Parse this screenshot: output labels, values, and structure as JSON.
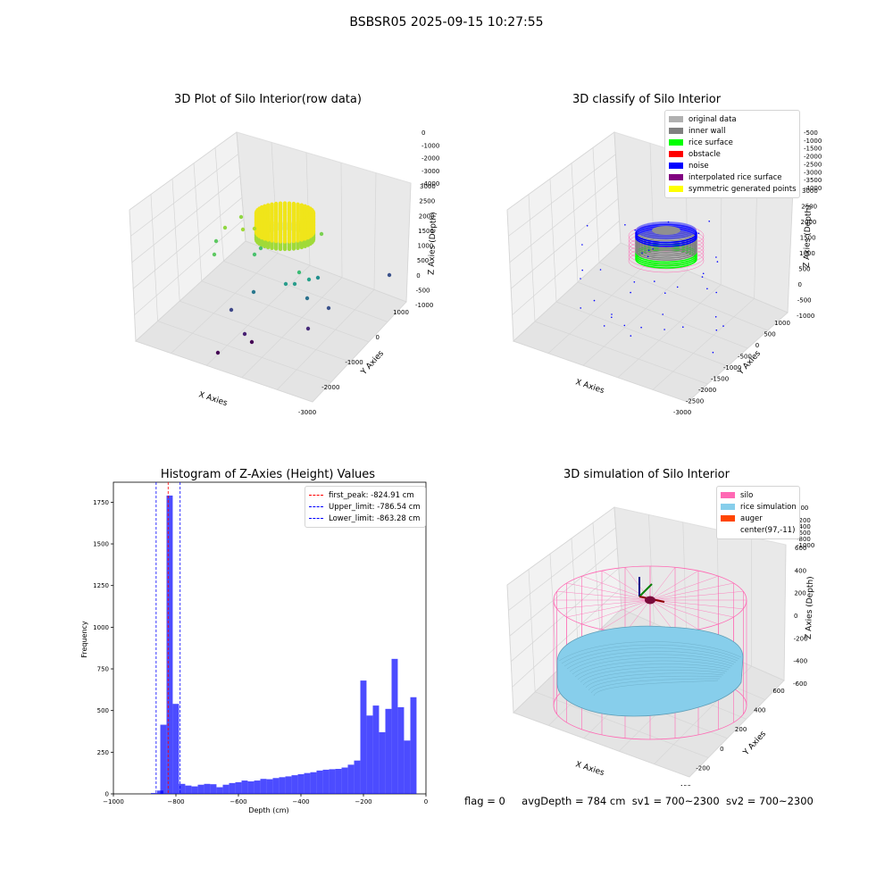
{
  "figure": {
    "suptitle": "BSBSR05 2025-09-15 10:27:55",
    "footer": {
      "flag": "flag = 0",
      "avg_depth": "avgDepth = 784 cm",
      "sv1": "sv1 = 700~2300",
      "sv2": "sv2 = 700~2300"
    }
  },
  "chart_data": [
    {
      "type": "scatter",
      "title": "3D Plot of Silo Interior(row data)",
      "xlabel": "X Axies",
      "ylabel": "Y Axies",
      "zlabel": "Z Axies (Depth)",
      "x_ticks": [
        "-3000",
        "-2000",
        "-1000",
        "0",
        "1000"
      ],
      "y_ticks": [
        "-1000",
        "-500",
        "0",
        "500",
        "1000",
        "1500",
        "2000",
        "2500",
        "3000"
      ],
      "z_ticks": [
        "0",
        "-1000",
        "-2000",
        "-3000",
        "-4000"
      ],
      "colors": {
        "high": "#fde725",
        "mid": "#21918c",
        "low": "#440154"
      }
    },
    {
      "type": "scatter",
      "title": "3D classify of Silo Interior",
      "xlabel": "X Axies",
      "ylabel": "Y Axies",
      "zlabel": "Z Axies (Depth)",
      "x_ticks": [
        "-3000",
        "-2500",
        "-2000",
        "-1500",
        "-1000",
        "-500",
        "0",
        "500",
        "1000"
      ],
      "y_ticks": [
        "-1000",
        "-500",
        "0",
        "500",
        "1000",
        "1500",
        "2000",
        "2500",
        "3000"
      ],
      "z_ticks": [
        "-500",
        "-1000",
        "-1500",
        "-2000",
        "-2500",
        "-3000",
        "-3500",
        "-4000"
      ],
      "legend": [
        {
          "label": "original data",
          "color": "#b0b0b0"
        },
        {
          "label": "inner wall",
          "color": "#808080"
        },
        {
          "label": "rice surface",
          "color": "#00ff00"
        },
        {
          "label": "obstacle",
          "color": "#ff0000"
        },
        {
          "label": "noise",
          "color": "#0000ff"
        },
        {
          "label": "interpolated rice surface",
          "color": "#800080"
        },
        {
          "label": "symmetric generated points",
          "color": "#ffff00"
        }
      ]
    },
    {
      "type": "bar",
      "title": "Histogram of Z-Axies (Height) Values",
      "xlabel": "Depth (cm)",
      "ylabel": "Frequency",
      "xlim": [
        -1000,
        0
      ],
      "ylim": [
        0,
        1750
      ],
      "x_ticks": [
        -1000,
        -800,
        -600,
        -400,
        -200,
        0
      ],
      "y_ticks": [
        0,
        250,
        500,
        750,
        1000,
        1250,
        1500,
        1750
      ],
      "bar_color": "#0000ff",
      "bin_width": 19.8,
      "bins": [
        [
          -880,
          5
        ],
        [
          -860,
          20
        ],
        [
          -850,
          415
        ],
        [
          -830,
          1790
        ],
        [
          -810,
          540
        ],
        [
          -790,
          60
        ],
        [
          -770,
          50
        ],
        [
          -750,
          45
        ],
        [
          -730,
          55
        ],
        [
          -710,
          60
        ],
        [
          -690,
          58
        ],
        [
          -670,
          40
        ],
        [
          -650,
          55
        ],
        [
          -630,
          65
        ],
        [
          -610,
          70
        ],
        [
          -590,
          80
        ],
        [
          -570,
          75
        ],
        [
          -550,
          80
        ],
        [
          -530,
          90
        ],
        [
          -510,
          88
        ],
        [
          -490,
          95
        ],
        [
          -470,
          100
        ],
        [
          -450,
          105
        ],
        [
          -430,
          112
        ],
        [
          -410,
          118
        ],
        [
          -390,
          125
        ],
        [
          -370,
          130
        ],
        [
          -350,
          140
        ],
        [
          -330,
          145
        ],
        [
          -310,
          148
        ],
        [
          -290,
          150
        ],
        [
          -270,
          158
        ],
        [
          -250,
          175
        ],
        [
          -230,
          200
        ],
        [
          -210,
          680
        ],
        [
          -190,
          470
        ],
        [
          -170,
          530
        ],
        [
          -150,
          370
        ],
        [
          -130,
          510
        ],
        [
          -110,
          810
        ],
        [
          -90,
          520
        ],
        [
          -70,
          320
        ],
        [
          -50,
          580
        ]
      ],
      "lines": [
        {
          "label": "first_peak: -824.91 cm",
          "x": -824.91,
          "color": "#ff0000"
        },
        {
          "label": "Upper_limit: -786.54 cm",
          "x": -786.54,
          "color": "#0000ff"
        },
        {
          "label": "Lower_limit: -863.28 cm",
          "x": -863.28,
          "color": "#0000ff"
        }
      ]
    },
    {
      "type": "scatter",
      "title": "3D simulation of Silo Interior",
      "xlabel": "X Axies",
      "ylabel": "Y Axies",
      "zlabel": "Z Axies (Depth)",
      "x_ticks": [
        "-400",
        "-200",
        "0",
        "200",
        "400",
        "600"
      ],
      "y_ticks": [
        "-600",
        "-400",
        "-200",
        "0",
        "200",
        "400",
        "600"
      ],
      "z_ticks": [
        "200",
        "0",
        "-200",
        "-400",
        "-600",
        "-800",
        "-1000"
      ],
      "legend": [
        {
          "label": "silo",
          "color": "#ff69b4"
        },
        {
          "label": "rice simulation",
          "color": "#87ceeb"
        },
        {
          "label": "auger",
          "color": "#ff4500"
        },
        {
          "label": "center(97,-11)",
          "color": ""
        }
      ]
    }
  ]
}
